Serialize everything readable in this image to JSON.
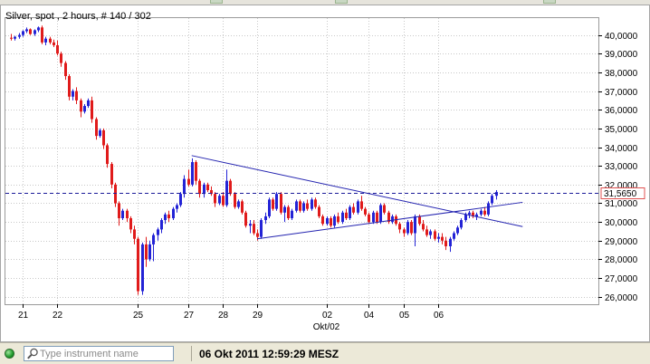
{
  "chart_title": "Silver, spot , 2 hours, # 140 / 302",
  "search": {
    "placeholder": "Type instrument name",
    "value": ""
  },
  "status_datetime": "06 Okt 2011 12:59:29 MESZ",
  "icons": {
    "status": "status-dot-icon",
    "search": "search-icon"
  },
  "colors": {
    "up": "#2323d6",
    "down": "#e01b1b",
    "trendline": "#2424b0",
    "current_price_line": "#1a1a9a",
    "price_badge_border": "#e05050"
  },
  "chart_data": {
    "type": "candlestick",
    "title": "Silver, spot , 2 hours, # 140 / 302",
    "ylim": [
      25.6,
      40.9
    ],
    "y_ticks": [
      "26,0000",
      "27,0000",
      "28,0000",
      "29,0000",
      "30,0000",
      "31,0000",
      "32,0000",
      "33,0000",
      "34,0000",
      "35,0000",
      "36,0000",
      "37,0000",
      "38,0000",
      "39,0000",
      "40,0000"
    ],
    "y_tick_values": [
      26,
      27,
      28,
      29,
      30,
      31,
      32,
      33,
      34,
      35,
      36,
      37,
      38,
      39,
      40
    ],
    "x_tick_labels": [
      "21",
      "22",
      "25",
      "27",
      "28",
      "29",
      "02",
      "04",
      "05",
      "06"
    ],
    "x_tick_indices": [
      3,
      12,
      33,
      46,
      55,
      64,
      82,
      93,
      102,
      111
    ],
    "x_sublabel": "Okt/02",
    "x_sublabel_index": 82,
    "current_price": 31.565,
    "current_price_label": "31,5650",
    "grid": true,
    "candles": [
      [
        39.85,
        40.05,
        39.7,
        39.8
      ],
      [
        39.8,
        39.95,
        39.7,
        39.9
      ],
      [
        39.9,
        40.1,
        39.8,
        40.0
      ],
      [
        40.0,
        40.25,
        39.9,
        40.2
      ],
      [
        40.2,
        40.4,
        40.1,
        40.3
      ],
      [
        40.3,
        40.35,
        40.0,
        40.05
      ],
      [
        40.05,
        40.3,
        39.95,
        40.25
      ],
      [
        40.25,
        40.45,
        40.15,
        40.4
      ],
      [
        40.4,
        40.5,
        39.5,
        39.6
      ],
      [
        39.6,
        39.9,
        39.45,
        39.8
      ],
      [
        39.8,
        39.9,
        39.5,
        39.6
      ],
      [
        39.6,
        39.75,
        39.35,
        39.45
      ],
      [
        39.45,
        39.7,
        38.9,
        39.0
      ],
      [
        39.0,
        39.1,
        38.3,
        38.5
      ],
      [
        38.5,
        38.6,
        37.6,
        37.8
      ],
      [
        37.8,
        37.9,
        36.5,
        36.7
      ],
      [
        36.7,
        37.1,
        36.5,
        37.0
      ],
      [
        37.0,
        37.2,
        36.3,
        36.5
      ],
      [
        36.5,
        36.6,
        35.6,
        35.9
      ],
      [
        35.9,
        36.3,
        35.8,
        36.2
      ],
      [
        36.2,
        36.6,
        36.1,
        36.5
      ],
      [
        36.5,
        36.7,
        35.3,
        35.5
      ],
      [
        35.5,
        35.6,
        34.4,
        34.6
      ],
      [
        34.6,
        35.0,
        34.5,
        34.9
      ],
      [
        34.9,
        35.0,
        33.9,
        34.1
      ],
      [
        34.1,
        34.2,
        32.9,
        33.1
      ],
      [
        33.1,
        33.2,
        31.8,
        32.0
      ],
      [
        32.0,
        32.1,
        30.8,
        31.0
      ],
      [
        31.0,
        31.1,
        29.8,
        30.2
      ],
      [
        30.2,
        30.7,
        30.1,
        30.6
      ],
      [
        30.6,
        30.7,
        30.0,
        30.2
      ],
      [
        30.2,
        30.3,
        29.4,
        29.6
      ],
      [
        29.6,
        29.8,
        28.8,
        29.1
      ],
      [
        29.1,
        29.2,
        26.1,
        26.3
      ],
      [
        26.3,
        28.9,
        26.1,
        28.8
      ],
      [
        28.8,
        29.2,
        27.6,
        28.0
      ],
      [
        28.0,
        29.0,
        27.9,
        28.8
      ],
      [
        28.8,
        29.4,
        27.9,
        29.3
      ],
      [
        29.3,
        29.7,
        29.0,
        29.6
      ],
      [
        29.6,
        30.2,
        29.4,
        30.1
      ],
      [
        30.1,
        30.5,
        29.9,
        30.4
      ],
      [
        30.4,
        30.6,
        30.0,
        30.2
      ],
      [
        30.2,
        30.8,
        30.1,
        30.7
      ],
      [
        30.7,
        31.0,
        30.5,
        30.9
      ],
      [
        30.9,
        31.6,
        30.8,
        31.5
      ],
      [
        31.5,
        32.5,
        31.3,
        32.3
      ],
      [
        32.3,
        32.8,
        31.9,
        32.0
      ],
      [
        32.0,
        33.4,
        31.9,
        33.2
      ],
      [
        33.2,
        33.3,
        32.0,
        32.2
      ],
      [
        32.2,
        32.3,
        31.3,
        31.5
      ],
      [
        31.5,
        32.1,
        31.3,
        32.0
      ],
      [
        32.0,
        32.1,
        31.6,
        31.7
      ],
      [
        31.7,
        31.9,
        31.4,
        31.5
      ],
      [
        31.5,
        31.6,
        30.8,
        31.0
      ],
      [
        31.0,
        31.5,
        30.9,
        31.4
      ],
      [
        31.4,
        31.6,
        30.8,
        30.9
      ],
      [
        30.9,
        32.8,
        30.8,
        32.2
      ],
      [
        32.2,
        32.3,
        31.4,
        31.5
      ],
      [
        31.5,
        31.6,
        30.7,
        30.8
      ],
      [
        30.8,
        31.2,
        30.7,
        31.1
      ],
      [
        31.1,
        31.2,
        30.4,
        30.5
      ],
      [
        30.5,
        30.6,
        29.7,
        29.8
      ],
      [
        29.8,
        30.1,
        29.4,
        29.9
      ],
      [
        29.9,
        30.1,
        29.3,
        29.4
      ],
      [
        29.4,
        29.6,
        29.0,
        29.2
      ],
      [
        29.2,
        30.2,
        29.1,
        30.1
      ],
      [
        30.1,
        30.5,
        29.9,
        30.3
      ],
      [
        30.3,
        31.3,
        30.2,
        31.2
      ],
      [
        31.2,
        31.3,
        30.6,
        30.7
      ],
      [
        30.7,
        31.6,
        30.6,
        31.5
      ],
      [
        31.5,
        31.6,
        30.4,
        30.5
      ],
      [
        30.5,
        30.9,
        30.0,
        30.8
      ],
      [
        30.8,
        30.9,
        30.1,
        30.2
      ],
      [
        30.2,
        30.7,
        30.1,
        30.6
      ],
      [
        30.6,
        31.2,
        30.5,
        31.1
      ],
      [
        31.1,
        31.2,
        30.5,
        30.6
      ],
      [
        30.6,
        31.1,
        30.5,
        31.0
      ],
      [
        31.0,
        31.2,
        30.6,
        30.7
      ],
      [
        30.7,
        31.3,
        30.6,
        31.2
      ],
      [
        31.2,
        31.3,
        30.7,
        30.8
      ],
      [
        30.8,
        30.9,
        30.2,
        30.3
      ],
      [
        30.3,
        30.4,
        29.8,
        29.9
      ],
      [
        29.9,
        30.3,
        29.8,
        30.2
      ],
      [
        30.2,
        30.3,
        29.7,
        29.8
      ],
      [
        29.8,
        30.4,
        29.7,
        30.3
      ],
      [
        30.3,
        30.5,
        29.9,
        30.0
      ],
      [
        30.0,
        30.6,
        29.9,
        30.5
      ],
      [
        30.5,
        30.7,
        30.1,
        30.2
      ],
      [
        30.2,
        30.9,
        30.1,
        30.8
      ],
      [
        30.8,
        31.0,
        30.4,
        30.5
      ],
      [
        30.5,
        31.2,
        30.4,
        31.1
      ],
      [
        31.1,
        31.4,
        30.6,
        30.7
      ],
      [
        30.7,
        30.8,
        30.3,
        30.4
      ],
      [
        30.4,
        30.5,
        29.9,
        30.0
      ],
      [
        30.0,
        30.6,
        29.9,
        30.5
      ],
      [
        30.5,
        30.6,
        29.9,
        30.0
      ],
      [
        30.0,
        31.0,
        29.9,
        30.9
      ],
      [
        30.9,
        31.0,
        30.4,
        30.5
      ],
      [
        30.5,
        30.6,
        29.9,
        30.0
      ],
      [
        30.0,
        30.4,
        29.9,
        30.3
      ],
      [
        30.3,
        30.4,
        29.8,
        29.9
      ],
      [
        29.9,
        30.0,
        29.4,
        29.6
      ],
      [
        29.6,
        29.7,
        29.2,
        29.4
      ],
      [
        29.4,
        30.1,
        29.3,
        30.0
      ],
      [
        30.0,
        30.1,
        29.3,
        29.4
      ],
      [
        29.4,
        30.4,
        28.7,
        30.3
      ],
      [
        30.3,
        30.4,
        29.8,
        29.9
      ],
      [
        29.9,
        30.1,
        29.5,
        29.6
      ],
      [
        29.6,
        29.8,
        29.2,
        29.3
      ],
      [
        29.3,
        29.6,
        29.1,
        29.5
      ],
      [
        29.5,
        29.6,
        29.0,
        29.1
      ],
      [
        29.1,
        29.4,
        28.9,
        29.2
      ],
      [
        29.2,
        29.4,
        28.8,
        29.0
      ],
      [
        29.0,
        29.2,
        28.5,
        28.7
      ],
      [
        28.7,
        29.2,
        28.4,
        29.1
      ],
      [
        29.1,
        29.5,
        29.0,
        29.4
      ],
      [
        29.4,
        29.8,
        29.3,
        29.7
      ],
      [
        29.7,
        30.2,
        29.6,
        30.1
      ],
      [
        30.1,
        30.5,
        30.0,
        30.4
      ],
      [
        30.4,
        30.6,
        30.2,
        30.5
      ],
      [
        30.5,
        30.6,
        30.2,
        30.3
      ],
      [
        30.3,
        30.5,
        30.1,
        30.4
      ],
      [
        30.4,
        30.7,
        30.3,
        30.6
      ],
      [
        30.6,
        30.8,
        30.3,
        30.4
      ],
      [
        30.4,
        31.1,
        30.3,
        31.0
      ],
      [
        31.0,
        31.5,
        30.9,
        31.4
      ],
      [
        31.4,
        31.7,
        31.2,
        31.6
      ]
    ],
    "trendlines": [
      {
        "from": {
          "index": 47,
          "price": 33.55
        },
        "to": {
          "index": 133,
          "price": 29.75
        }
      },
      {
        "from": {
          "index": 64,
          "price": 29.1
        },
        "to": {
          "index": 133,
          "price": 31.05
        }
      }
    ]
  }
}
